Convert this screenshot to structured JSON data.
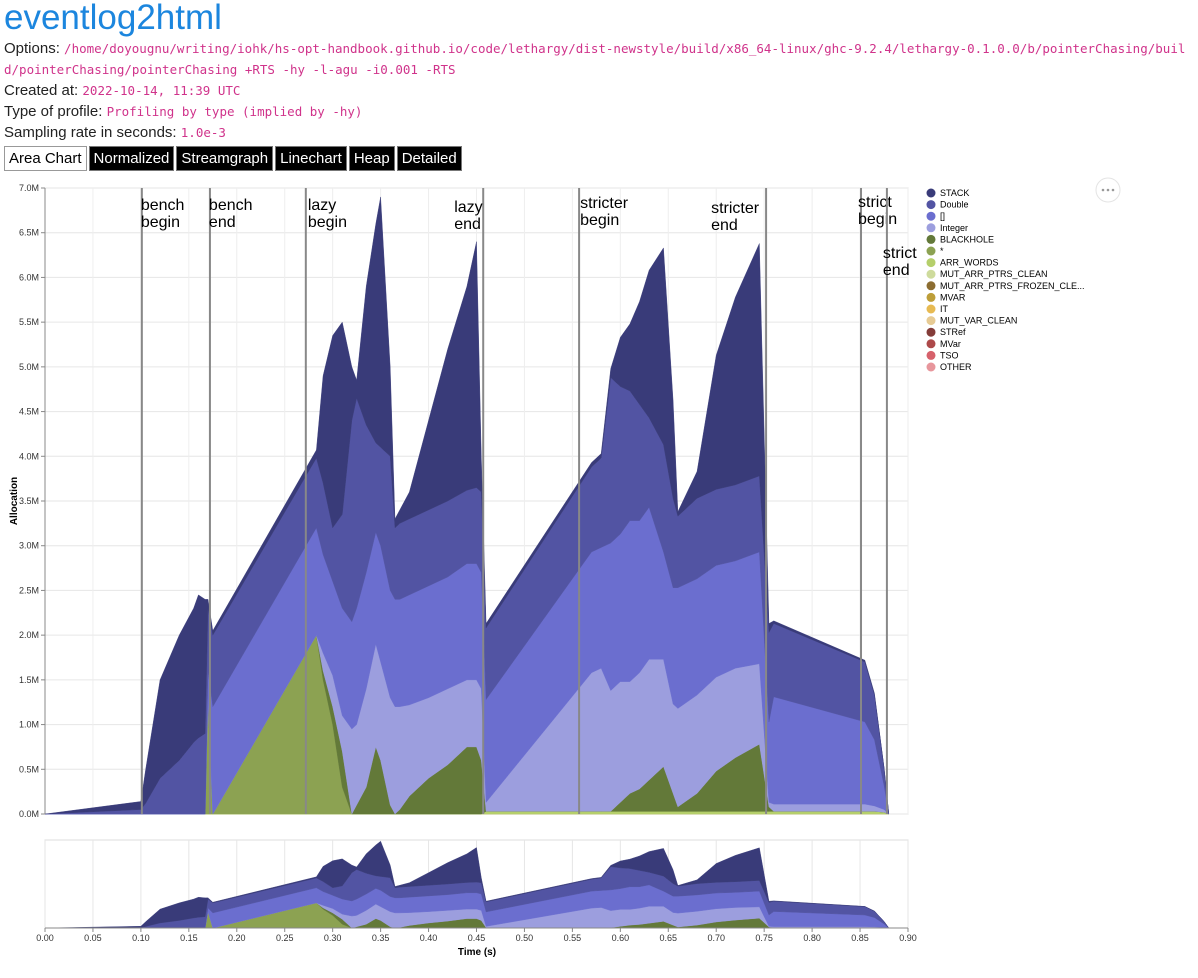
{
  "header": {
    "title": "eventlog2html",
    "fields": [
      {
        "label": "Options:",
        "value": "/home/doyougnu/writing/iohk/hs-opt-handbook.github.io/code/lethargy/dist-newstyle/build/x86_64-linux/ghc-9.2.4/lethargy-0.1.0.0/b/pointerChasing/build/pointerChasing/pointerChasing +RTS -hy -l-agu -i0.001 -RTS"
      },
      {
        "label": "Created at:",
        "value": "2022-10-14, 11:39 UTC"
      },
      {
        "label": "Type of profile:",
        "value": "Profiling by type (implied by -hy)"
      },
      {
        "label": "Sampling rate in seconds:",
        "value": "1.0e-3"
      }
    ]
  },
  "tabs": [
    "Area Chart",
    "Normalized",
    "Streamgraph",
    "Linechart",
    "Heap",
    "Detailed"
  ],
  "chart_data": {
    "type": "area",
    "stacked": true,
    "grid": true,
    "xlabel": "Time (s)",
    "ylabel": "Allocation",
    "xlim": [
      0,
      0.9
    ],
    "ylim": [
      0,
      7
    ],
    "xticks": [
      {
        "value": 0,
        "label": "0.00"
      },
      {
        "value": 0.05,
        "label": "0.05"
      },
      {
        "value": 0.1,
        "label": "0.10"
      },
      {
        "value": 0.15,
        "label": "0.15"
      },
      {
        "value": 0.2,
        "label": "0.20"
      },
      {
        "value": 0.25,
        "label": "0.25"
      },
      {
        "value": 0.3,
        "label": "0.30"
      },
      {
        "value": 0.35,
        "label": "0.35"
      },
      {
        "value": 0.4,
        "label": "0.40"
      },
      {
        "value": 0.45,
        "label": "0.45"
      },
      {
        "value": 0.5,
        "label": "0.50"
      },
      {
        "value": 0.55,
        "label": "0.55"
      },
      {
        "value": 0.6,
        "label": "0.60"
      },
      {
        "value": 0.65,
        "label": "0.65"
      },
      {
        "value": 0.7,
        "label": "0.70"
      },
      {
        "value": 0.75,
        "label": "0.75"
      },
      {
        "value": 0.8,
        "label": "0.80"
      },
      {
        "value": 0.85,
        "label": "0.85"
      },
      {
        "value": 0.9,
        "label": "0.90"
      }
    ],
    "yticks": [
      {
        "value": 0,
        "label": "0.0M"
      },
      {
        "value": 0.5,
        "label": "0.5M"
      },
      {
        "value": 1,
        "label": "1.0M"
      },
      {
        "value": 1.5,
        "label": "1.5M"
      },
      {
        "value": 2,
        "label": "2.0M"
      },
      {
        "value": 2.5,
        "label": "2.5M"
      },
      {
        "value": 3,
        "label": "3.0M"
      },
      {
        "value": 3.5,
        "label": "3.5M"
      },
      {
        "value": 4,
        "label": "4.0M"
      },
      {
        "value": 4.5,
        "label": "4.5M"
      },
      {
        "value": 5,
        "label": "5.0M"
      },
      {
        "value": 5.5,
        "label": "5.5M"
      },
      {
        "value": 6,
        "label": "6.0M"
      },
      {
        "value": 6.5,
        "label": "6.5M"
      },
      {
        "value": 7,
        "label": "7.0M"
      }
    ],
    "annotations": [
      {
        "x": 0.101,
        "label": [
          "bench",
          "begin"
        ]
      },
      {
        "x": 0.172,
        "label": [
          "bench",
          "end"
        ]
      },
      {
        "x": 0.272,
        "label": [
          "lazy",
          "begin"
        ]
      },
      {
        "x": 0.457,
        "label": [
          "lazy",
          "end"
        ]
      },
      {
        "x": 0.557,
        "label": [
          "stricter",
          "begin"
        ]
      },
      {
        "x": 0.752,
        "label": [
          "stricter",
          "end"
        ]
      },
      {
        "x": 0.851,
        "label": [
          "strict",
          "begin"
        ]
      },
      {
        "x": 0.878,
        "label": [
          "strict",
          "end"
        ]
      }
    ],
    "x": [
      0,
      0.1,
      0.105,
      0.12,
      0.14,
      0.155,
      0.16,
      0.167,
      0.17,
      0.175,
      0.283,
      0.29,
      0.3,
      0.31,
      0.32,
      0.325,
      0.335,
      0.345,
      0.35,
      0.36,
      0.365,
      0.37,
      0.38,
      0.4,
      0.42,
      0.44,
      0.45,
      0.455,
      0.46,
      0.57,
      0.58,
      0.59,
      0.6,
      0.61,
      0.62,
      0.63,
      0.645,
      0.655,
      0.66,
      0.68,
      0.7,
      0.72,
      0.745,
      0.755,
      0.76,
      0.855,
      0.865,
      0.875,
      0.88
    ],
    "series": [
      {
        "name": "STACK",
        "color": "#393b79",
        "values": [
          0,
          0.09,
          0.38,
          1.1,
          1.4,
          1.5,
          1.6,
          1.5,
          0.1,
          0.05,
          0.09,
          1.2,
          2.15,
          2.15,
          0.6,
          0.2,
          1.55,
          2.45,
          2.8,
          1.0,
          0.1,
          0.15,
          0.3,
          1.0,
          1.7,
          2.28,
          2.75,
          0.4,
          0.05,
          0.05,
          0.05,
          0.1,
          0.55,
          0.75,
          1.15,
          1.65,
          2.2,
          1.1,
          0.05,
          0.3,
          1.5,
          2.1,
          2.6,
          0.1,
          0.03,
          0.02,
          0.02,
          0,
          0
        ]
      },
      {
        "name": "Double",
        "color": "#5254a3",
        "values": [
          0,
          0.05,
          0.12,
          0.4,
          0.6,
          0.8,
          0.85,
          0.9,
          0.7,
          0.8,
          0.78,
          0.8,
          0.6,
          1.05,
          2.25,
          2.35,
          1.65,
          1.0,
          1.1,
          1.5,
          0.8,
          0.85,
          0.85,
          0.85,
          0.85,
          0.82,
          0.85,
          0.9,
          0.8,
          0.95,
          1.0,
          1.85,
          1.65,
          1.45,
          1.3,
          1.0,
          1.2,
          1.0,
          0.8,
          0.9,
          0.85,
          0.85,
          0.85,
          1.0,
          0.82,
          0.67,
          0.5,
          0.2,
          0
        ]
      },
      {
        "name": "[]",
        "color": "#6b6ecf",
        "values": [
          0,
          0,
          0,
          0,
          0,
          0,
          0,
          0,
          0.3,
          1.2,
          1.2,
          1.1,
          1.05,
          1.2,
          1.2,
          1.3,
          1.3,
          1.25,
          1.3,
          1.2,
          1.2,
          1.2,
          1.23,
          1.25,
          1.25,
          1.3,
          1.3,
          1.3,
          1.15,
          1.35,
          1.35,
          1.65,
          1.65,
          1.8,
          1.7,
          1.7,
          1.2,
          1.3,
          1.35,
          1.3,
          1.25,
          1.2,
          1.25,
          0.9,
          1.2,
          0.92,
          0.74,
          0.27,
          0
        ]
      },
      {
        "name": "Integer",
        "color": "#9c9ede",
        "values": [
          0,
          0,
          0,
          0,
          0,
          0,
          0,
          0,
          0,
          0,
          0,
          0.2,
          0.35,
          0.4,
          0.95,
          0.9,
          1.1,
          1.15,
          1.1,
          1.2,
          1.2,
          1.15,
          1.02,
          0.9,
          0.85,
          0.75,
          0.75,
          0.8,
          0.1,
          1.55,
          1.6,
          1.35,
          1.35,
          1.25,
          1.3,
          1.35,
          1.2,
          1.0,
          1.1,
          1.1,
          1.05,
          1.0,
          0.9,
          0.05,
          0.08,
          0.08,
          0.06,
          0.03,
          0
        ]
      },
      {
        "name": "BLACKHOLE",
        "color": "#637939",
        "values": [
          0,
          0,
          0,
          0,
          0,
          0,
          0,
          0,
          0,
          0,
          0,
          0.1,
          0.2,
          0.4,
          0,
          0.1,
          0.3,
          0.75,
          0.6,
          0.1,
          0,
          0.05,
          0.2,
          0.4,
          0.55,
          0.75,
          0.75,
          0.6,
          0,
          0,
          0,
          0,
          0.1,
          0.2,
          0.25,
          0.35,
          0.5,
          0.2,
          0.05,
          0.2,
          0.45,
          0.6,
          0.75,
          0.05,
          0,
          0,
          0,
          0,
          0
        ]
      },
      {
        "name": "*",
        "color": "#8ca252",
        "values": [
          0,
          0,
          0,
          0,
          0,
          0,
          0,
          0,
          1.3,
          0,
          2.0,
          1.5,
          1.0,
          0.3,
          0,
          0,
          0,
          0,
          0,
          0,
          0,
          0,
          0,
          0,
          0,
          0,
          0,
          0,
          0,
          0,
          0,
          0,
          0,
          0,
          0,
          0,
          0,
          0,
          0,
          0,
          0,
          0,
          0,
          0,
          0,
          0,
          0,
          0,
          0
        ]
      },
      {
        "name": "ARR_WORDS",
        "color": "#b5cf6b",
        "values": [
          0,
          0,
          0,
          0,
          0,
          0,
          0,
          0,
          0,
          0,
          0,
          0,
          0,
          0,
          0,
          0,
          0,
          0,
          0,
          0,
          0,
          0,
          0,
          0,
          0,
          0,
          0,
          0,
          0.03,
          0.03,
          0.03,
          0.03,
          0.03,
          0.03,
          0.03,
          0.03,
          0.03,
          0.03,
          0.03,
          0.03,
          0.03,
          0.03,
          0.03,
          0.03,
          0.03,
          0.03,
          0.03,
          0.02,
          0
        ]
      },
      {
        "name": "MUT_ARR_PTRS_CLEAN",
        "color": "#cedb9c",
        "values": [
          0,
          0,
          0,
          0,
          0,
          0,
          0,
          0,
          0,
          0,
          0,
          0,
          0,
          0,
          0,
          0,
          0,
          0,
          0,
          0,
          0,
          0,
          0,
          0,
          0,
          0,
          0,
          0,
          0,
          0,
          0,
          0,
          0,
          0,
          0,
          0,
          0,
          0,
          0,
          0,
          0,
          0,
          0,
          0,
          0,
          0,
          0,
          0,
          0
        ]
      },
      {
        "name": "MUT_ARR_PTRS_FROZEN_CLE...",
        "color": "#8c6d31",
        "values": [
          0,
          0,
          0,
          0,
          0,
          0,
          0,
          0,
          0,
          0,
          0,
          0,
          0,
          0,
          0,
          0,
          0,
          0,
          0,
          0,
          0,
          0,
          0,
          0,
          0,
          0,
          0,
          0,
          0,
          0,
          0,
          0,
          0,
          0,
          0,
          0,
          0,
          0,
          0,
          0,
          0,
          0,
          0,
          0,
          0,
          0,
          0,
          0,
          0
        ]
      },
      {
        "name": "MVAR",
        "color": "#bd9e39",
        "values": [
          0,
          0,
          0,
          0,
          0,
          0,
          0,
          0,
          0,
          0,
          0,
          0,
          0,
          0,
          0,
          0,
          0,
          0,
          0,
          0,
          0,
          0,
          0,
          0,
          0,
          0,
          0,
          0,
          0,
          0,
          0,
          0,
          0,
          0,
          0,
          0,
          0,
          0,
          0,
          0,
          0,
          0,
          0,
          0,
          0,
          0,
          0,
          0,
          0
        ]
      },
      {
        "name": "IT",
        "color": "#e7ba52",
        "values": [
          0,
          0,
          0,
          0,
          0,
          0,
          0,
          0,
          0,
          0,
          0,
          0,
          0,
          0,
          0,
          0,
          0,
          0,
          0,
          0,
          0,
          0,
          0,
          0,
          0,
          0,
          0,
          0,
          0,
          0,
          0,
          0,
          0,
          0,
          0,
          0,
          0,
          0,
          0,
          0,
          0,
          0,
          0,
          0,
          0,
          0,
          0,
          0,
          0
        ]
      },
      {
        "name": "MUT_VAR_CLEAN",
        "color": "#e7cb94",
        "values": [
          0,
          0,
          0,
          0,
          0,
          0,
          0,
          0,
          0,
          0,
          0,
          0,
          0,
          0,
          0,
          0,
          0,
          0,
          0,
          0,
          0,
          0,
          0,
          0,
          0,
          0,
          0,
          0,
          0,
          0,
          0,
          0,
          0,
          0,
          0,
          0,
          0,
          0,
          0,
          0,
          0,
          0,
          0,
          0,
          0,
          0,
          0,
          0,
          0
        ]
      },
      {
        "name": "STRef",
        "color": "#843c39",
        "values": [
          0,
          0,
          0,
          0,
          0,
          0,
          0,
          0,
          0,
          0,
          0,
          0,
          0,
          0,
          0,
          0,
          0,
          0,
          0,
          0,
          0,
          0,
          0,
          0,
          0,
          0,
          0,
          0,
          0,
          0,
          0,
          0,
          0,
          0,
          0,
          0,
          0,
          0,
          0,
          0,
          0,
          0,
          0,
          0,
          0,
          0,
          0,
          0,
          0
        ]
      },
      {
        "name": "MVar",
        "color": "#ad494a",
        "values": [
          0,
          0,
          0,
          0,
          0,
          0,
          0,
          0,
          0,
          0,
          0,
          0,
          0,
          0,
          0,
          0,
          0,
          0,
          0,
          0,
          0,
          0,
          0,
          0,
          0,
          0,
          0,
          0,
          0,
          0,
          0,
          0,
          0,
          0,
          0,
          0,
          0,
          0,
          0,
          0,
          0,
          0,
          0,
          0,
          0,
          0,
          0,
          0,
          0
        ]
      },
      {
        "name": "TSO",
        "color": "#d6616b",
        "values": [
          0,
          0,
          0,
          0,
          0,
          0,
          0,
          0,
          0,
          0,
          0,
          0,
          0,
          0,
          0,
          0,
          0,
          0,
          0,
          0,
          0,
          0,
          0,
          0,
          0,
          0,
          0,
          0,
          0,
          0,
          0,
          0,
          0,
          0,
          0,
          0,
          0,
          0,
          0,
          0,
          0,
          0,
          0,
          0,
          0,
          0,
          0,
          0,
          0
        ]
      },
      {
        "name": "OTHER",
        "color": "#e7969c",
        "values": [
          0,
          0,
          0,
          0,
          0,
          0,
          0,
          0,
          0,
          0,
          0,
          0,
          0,
          0,
          0,
          0,
          0,
          0,
          0,
          0,
          0,
          0,
          0,
          0,
          0,
          0,
          0,
          0,
          0,
          0,
          0,
          0,
          0,
          0,
          0,
          0,
          0,
          0,
          0,
          0,
          0,
          0,
          0,
          0,
          0,
          0,
          0,
          0,
          0
        ]
      }
    ]
  }
}
